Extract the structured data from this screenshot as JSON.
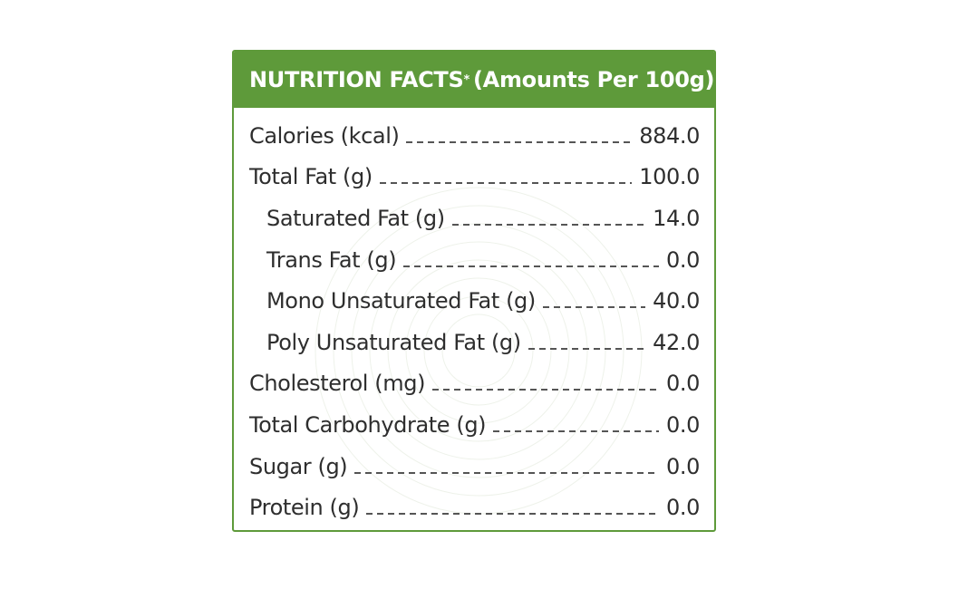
{
  "header": {
    "title": "NUTRITION FACTS",
    "title_mark": "*",
    "subtitle": "(Amounts Per 100g)"
  },
  "rows": [
    {
      "label": "Calories (kcal)",
      "value": "884.0"
    },
    {
      "label": "Total Fat (g)",
      "value": "100.0"
    },
    {
      "label": "Saturated Fat (g)",
      "value": "14.0"
    },
    {
      "label": "Trans Fat (g)",
      "value": "0.0"
    },
    {
      "label": "Mono Unsaturated Fat (g)",
      "value": "40.0"
    },
    {
      "label": "Poly Unsaturated Fat (g)",
      "value": "42.0"
    },
    {
      "label": "Cholesterol (mg)",
      "value": "0.0"
    },
    {
      "label": "Total Carbohydrate (g)",
      "value": "0.0"
    },
    {
      "label": "Sugar (g)",
      "value": "0.0"
    },
    {
      "label": "Protein (g)",
      "value": "0.0"
    }
  ],
  "colors": {
    "accent": "#5e9a3a",
    "text": "#2e2e2e"
  }
}
